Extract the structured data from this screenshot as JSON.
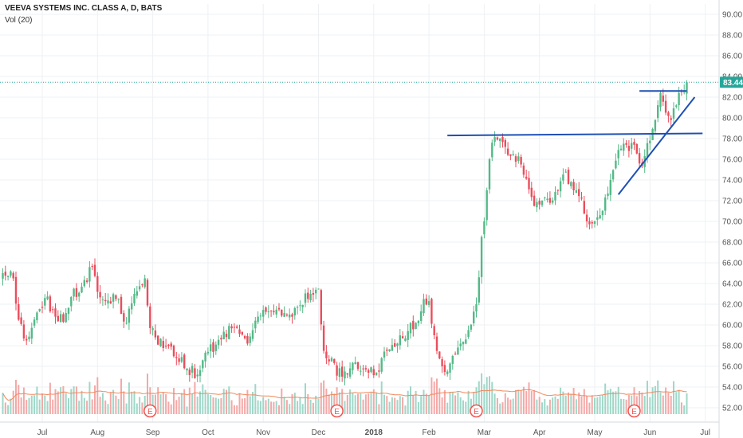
{
  "header": {
    "title": "VEEVA SYSTEMS INC. CLASS A, D, BATS",
    "indicator": "Vol (20)"
  },
  "colors": {
    "up": "#26a69a",
    "up_fill": "#53b987",
    "down": "#ef5350",
    "down_fill": "#eb4d5c",
    "trendline": "#1e4fb4",
    "price_line": "#26a69a",
    "vol_ma": "#f0895c",
    "grid": "#eef0f3",
    "axis_text": "#555555",
    "earnings": "#ef5350"
  },
  "price_badge": "83.44",
  "earnings_marker": "E",
  "chart_data": {
    "type": "candlestick",
    "title": "VEEVA SYSTEMS INC. CLASS A, D, BATS",
    "y_axis_side": "right",
    "ylim": [
      51,
      91
    ],
    "yticks": [
      52,
      54,
      56,
      58,
      60,
      62,
      64,
      66,
      68,
      70,
      72,
      74,
      76,
      78,
      80,
      82,
      84,
      86,
      88,
      90
    ],
    "ytick_labels": [
      "52.00",
      "54.00",
      "56.00",
      "58.00",
      "60.00",
      "62.00",
      "64.00",
      "66.00",
      "68.00",
      "70.00",
      "72.00",
      "74.00",
      "76.00",
      "78.00",
      "80.00",
      "82.00",
      "84.00",
      "86.00",
      "88.00",
      "90.00"
    ],
    "x_labels": [
      "Jul",
      "Aug",
      "Sep",
      "Oct",
      "Nov",
      "Dec",
      "2018",
      "Feb",
      "Mar",
      "Apr",
      "May",
      "Jun",
      "Jul"
    ],
    "x_label_bar_index": [
      15,
      36,
      57,
      78,
      99,
      120,
      141,
      162,
      183,
      204,
      225,
      246,
      267
    ],
    "last_price": 83.44,
    "earnings_bar_index": [
      56,
      127,
      180,
      240
    ],
    "trendlines": [
      {
        "name": "resistance",
        "from": [
          169,
          78.3
        ],
        "to": [
          266,
          78.5
        ]
      },
      {
        "name": "rising-support",
        "from": [
          234,
          72.6
        ],
        "to": [
          263,
          82.0
        ]
      },
      {
        "name": "short-resistance",
        "from": [
          242,
          82.6
        ],
        "to": [
          260,
          82.6
        ]
      }
    ],
    "anchors": [
      [
        0,
        65.0
      ],
      [
        4,
        64.5
      ],
      [
        6,
        60.5
      ],
      [
        9,
        58.5
      ],
      [
        13,
        61.2
      ],
      [
        16,
        62.6
      ],
      [
        20,
        60.8
      ],
      [
        23,
        60.3
      ],
      [
        26,
        62.7
      ],
      [
        30,
        63.7
      ],
      [
        34,
        65.6
      ],
      [
        36,
        63.2
      ],
      [
        39,
        62.3
      ],
      [
        43,
        62.5
      ],
      [
        47,
        60.2
      ],
      [
        50,
        63.0
      ],
      [
        54,
        64.5
      ],
      [
        56,
        59.7
      ],
      [
        58,
        58.8
      ],
      [
        62,
        57.9
      ],
      [
        66,
        56.8
      ],
      [
        70,
        55.8
      ],
      [
        74,
        55.2
      ],
      [
        78,
        57.4
      ],
      [
        83,
        58.6
      ],
      [
        88,
        59.8
      ],
      [
        93,
        58.2
      ],
      [
        97,
        60.8
      ],
      [
        101,
        61.3
      ],
      [
        105,
        61.5
      ],
      [
        109,
        61.0
      ],
      [
        113,
        61.9
      ],
      [
        117,
        63.0
      ],
      [
        120,
        63.5
      ],
      [
        122,
        57.5
      ],
      [
        125,
        56.8
      ],
      [
        127,
        55.1
      ],
      [
        130,
        55.5
      ],
      [
        134,
        56.4
      ],
      [
        138,
        55.7
      ],
      [
        142,
        55.4
      ],
      [
        146,
        57.5
      ],
      [
        150,
        58.2
      ],
      [
        154,
        59.4
      ],
      [
        158,
        60.4
      ],
      [
        160,
        62.5
      ],
      [
        162,
        62.3
      ],
      [
        164,
        59.0
      ],
      [
        167,
        56.0
      ],
      [
        169,
        55.5
      ],
      [
        171,
        57.0
      ],
      [
        174,
        58.2
      ],
      [
        177,
        59.5
      ],
      [
        180,
        62.0
      ],
      [
        181,
        64.6
      ],
      [
        182,
        68.5
      ],
      [
        183,
        70.0
      ],
      [
        184,
        73.0
      ],
      [
        185,
        76.0
      ],
      [
        186,
        77.6
      ],
      [
        188,
        77.9
      ],
      [
        191,
        77.2
      ],
      [
        194,
        76.5
      ],
      [
        197,
        75.5
      ],
      [
        200,
        73.1
      ],
      [
        202,
        71.5
      ],
      [
        205,
        72.0
      ],
      [
        208,
        71.8
      ],
      [
        211,
        73.0
      ],
      [
        214,
        74.8
      ],
      [
        217,
        73.0
      ],
      [
        220,
        72.2
      ],
      [
        222,
        70.0
      ],
      [
        224,
        69.8
      ],
      [
        227,
        70.6
      ],
      [
        229,
        72.3
      ],
      [
        231,
        74.0
      ],
      [
        234,
        76.9
      ],
      [
        236,
        77.5
      ],
      [
        238,
        76.8
      ],
      [
        240,
        77.4
      ],
      [
        242,
        75.6
      ],
      [
        244,
        76.3
      ],
      [
        246,
        77.8
      ],
      [
        248,
        79.8
      ],
      [
        250,
        82.4
      ],
      [
        252,
        80.5
      ],
      [
        254,
        79.8
      ],
      [
        256,
        81.2
      ],
      [
        258,
        82.5
      ],
      [
        260,
        83.44
      ]
    ],
    "volume": {
      "name": "Vol (20)",
      "ma_period": 20
    }
  }
}
